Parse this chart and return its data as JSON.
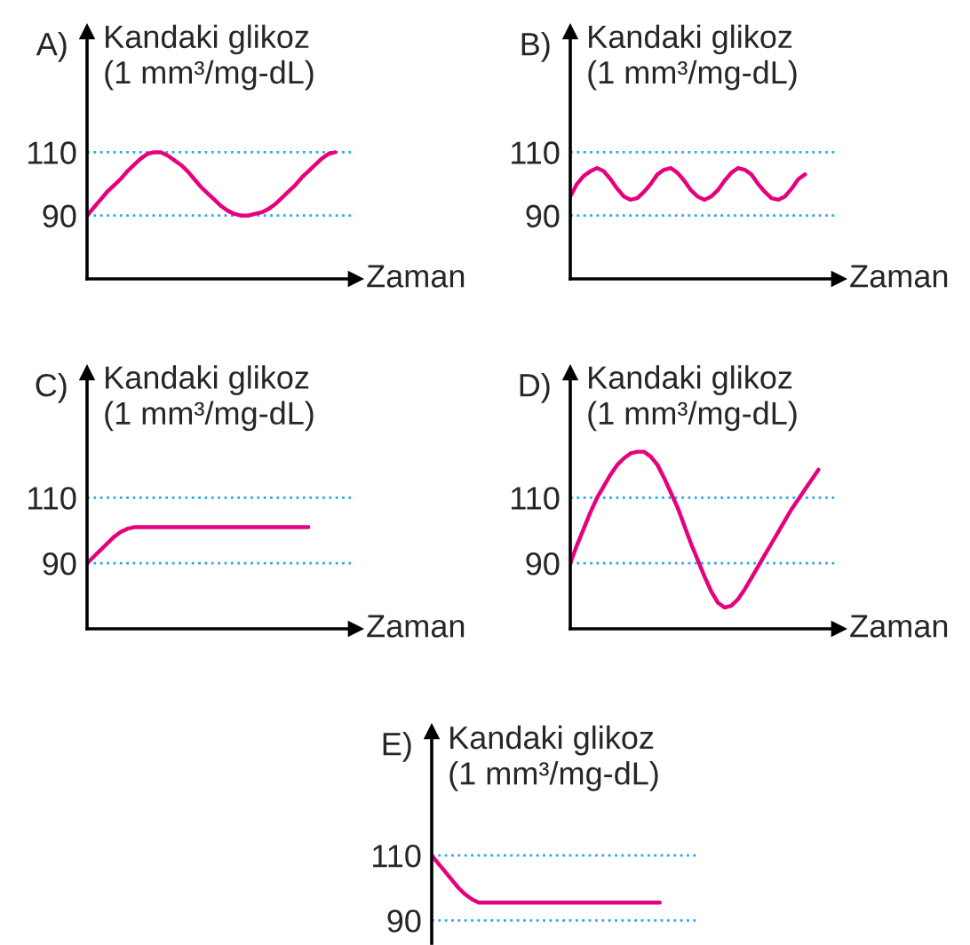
{
  "chart_data": [
    {
      "type": "line",
      "title": "A)",
      "xlabel": "Zaman",
      "ylabel": "Kandaki glikoz\n(1 mm³/mg-dL)",
      "tick_labels": "y",
      "ylim": [
        70,
        148
      ],
      "yticks": [
        90,
        110
      ],
      "color": "#e6007e",
      "categories": [
        null,
        null,
        null,
        null,
        null,
        null,
        null,
        null,
        null,
        null,
        null,
        null,
        null,
        null,
        null,
        null,
        null,
        null,
        null,
        null,
        null,
        null,
        null,
        null,
        null,
        null,
        null,
        null,
        null,
        null,
        null,
        null,
        null,
        null,
        null,
        null,
        null,
        null,
        null,
        null,
        null
      ],
      "values": [
        90,
        92.5,
        95,
        97.5,
        99.5,
        101.5,
        104,
        106,
        108,
        109.5,
        110,
        110,
        109,
        107.5,
        106,
        104,
        101.5,
        99,
        97,
        95,
        93,
        91.5,
        90.5,
        90,
        90,
        90.5,
        91,
        92,
        93.5,
        95.5,
        97.5,
        99.5,
        102,
        104,
        106,
        108,
        109.5,
        110,
        null,
        null,
        null
      ],
      "ref_lines": [
        {
          "axis": "y",
          "value": 90,
          "color": "#29abe2",
          "line_style": "dotted"
        },
        {
          "axis": "y",
          "value": 110,
          "color": "#29abe2",
          "line_style": "dotted"
        }
      ]
    },
    {
      "type": "line",
      "title": "B)",
      "xlabel": "Zaman",
      "ylabel": "Kandaki glikoz\n(1 mm³/mg-dL)",
      "tick_labels": "y",
      "ylim": [
        70,
        148
      ],
      "yticks": [
        90,
        110
      ],
      "color": "#e6007e",
      "categories": [
        null,
        null,
        null,
        null,
        null,
        null,
        null,
        null,
        null,
        null,
        null,
        null,
        null,
        null,
        null,
        null,
        null,
        null,
        null,
        null,
        null,
        null,
        null,
        null,
        null,
        null,
        null,
        null,
        null,
        null,
        null,
        null,
        null,
        null,
        null,
        null,
        null,
        null,
        null,
        null,
        null
      ],
      "values": [
        96,
        100,
        102.5,
        104,
        105,
        104,
        101.5,
        98.5,
        96,
        95,
        95.5,
        97.5,
        100,
        103,
        104.5,
        105,
        103.5,
        101,
        98,
        96,
        95,
        96,
        98,
        101,
        103.5,
        105,
        104.5,
        103,
        100,
        97.5,
        95.5,
        95,
        96,
        98.5,
        101.5,
        103,
        null,
        null,
        null,
        null,
        null
      ],
      "ref_lines": [
        {
          "axis": "y",
          "value": 90,
          "color": "#29abe2",
          "line_style": "dotted"
        },
        {
          "axis": "y",
          "value": 110,
          "color": "#29abe2",
          "line_style": "dotted"
        }
      ]
    },
    {
      "type": "line",
      "title": "C)",
      "xlabel": "Zaman",
      "ylabel": "Kandaki glikoz\n(1 mm³/mg-dL)",
      "tick_labels": "y",
      "ylim": [
        70,
        148
      ],
      "yticks": [
        90,
        110
      ],
      "color": "#e6007e",
      "categories": [
        null,
        null,
        null,
        null,
        null,
        null,
        null,
        null,
        null,
        null,
        null,
        null,
        null,
        null,
        null,
        null,
        null,
        null,
        null,
        null,
        null,
        null,
        null,
        null,
        null,
        null,
        null,
        null,
        null,
        null,
        null,
        null,
        null,
        null,
        null,
        null,
        null,
        null,
        null,
        null,
        null
      ],
      "values": [
        90,
        92,
        94,
        96,
        98,
        99.5,
        100.5,
        101,
        101,
        101,
        101,
        101,
        101,
        101,
        101,
        101,
        101,
        101,
        101,
        101,
        101,
        101,
        101,
        101,
        101,
        101,
        101,
        101,
        101,
        101,
        101,
        101,
        101,
        101,
        null,
        null,
        null,
        null,
        null,
        null,
        null
      ],
      "ref_lines": [
        {
          "axis": "y",
          "value": 90,
          "color": "#29abe2",
          "line_style": "dotted"
        },
        {
          "axis": "y",
          "value": 110,
          "color": "#29abe2",
          "line_style": "dotted"
        }
      ]
    },
    {
      "type": "line",
      "title": "D)",
      "xlabel": "Zaman",
      "ylabel": "Kandaki glikoz\n(1 mm³/mg-dL)",
      "tick_labels": "y",
      "ylim": [
        70,
        148
      ],
      "yticks": [
        90,
        110
      ],
      "color": "#e6007e",
      "categories": [
        null,
        null,
        null,
        null,
        null,
        null,
        null,
        null,
        null,
        null,
        null,
        null,
        null,
        null,
        null,
        null,
        null,
        null,
        null,
        null,
        null,
        null,
        null,
        null,
        null,
        null,
        null,
        null,
        null,
        null,
        null,
        null,
        null,
        null,
        null,
        null,
        null,
        null,
        null,
        null,
        null
      ],
      "values": [
        90,
        95.5,
        100.5,
        105.5,
        110,
        113.5,
        117,
        120,
        122,
        123.5,
        124,
        124,
        122.5,
        120,
        116,
        111.5,
        107,
        101.5,
        96,
        91,
        86,
        81.5,
        78,
        76.5,
        77,
        79,
        82,
        85.5,
        89,
        92.5,
        96,
        99.5,
        103,
        106.5,
        109.5,
        112.5,
        115.5,
        118.5,
        null,
        null,
        null
      ],
      "ref_lines": [
        {
          "axis": "y",
          "value": 90,
          "color": "#29abe2",
          "line_style": "dotted"
        },
        {
          "axis": "y",
          "value": 110,
          "color": "#29abe2",
          "line_style": "dotted"
        }
      ]
    },
    {
      "type": "line",
      "title": "E)",
      "ylabel": "Kandaki glikoz\n(1 mm³/mg-dL)",
      "tick_labels": "y",
      "ylim": [
        83,
        148
      ],
      "yticks": [
        90,
        110
      ],
      "color": "#e6007e",
      "categories": [
        null,
        null,
        null,
        null,
        null,
        null,
        null,
        null,
        null,
        null,
        null,
        null,
        null,
        null,
        null,
        null,
        null,
        null,
        null,
        null,
        null,
        null,
        null,
        null,
        null,
        null,
        null,
        null,
        null,
        null,
        null,
        null,
        null,
        null,
        null,
        null,
        null,
        null,
        null,
        null,
        null
      ],
      "values": [
        110,
        107.5,
        105,
        102.5,
        100,
        98,
        96.5,
        95.5,
        95.5,
        95.5,
        95.5,
        95.5,
        95.5,
        95.5,
        95.5,
        95.5,
        95.5,
        95.5,
        95.5,
        95.5,
        95.5,
        95.5,
        95.5,
        95.5,
        95.5,
        95.5,
        95.5,
        95.5,
        95.5,
        95.5,
        95.5,
        95.5,
        95.5,
        95.5,
        95.5,
        null,
        null,
        null,
        null,
        null,
        null
      ],
      "ref_lines": [
        {
          "axis": "y",
          "value": 90,
          "color": "#29abe2",
          "line_style": "dotted"
        },
        {
          "axis": "y",
          "value": 110,
          "color": "#29abe2",
          "line_style": "dotted"
        }
      ]
    }
  ]
}
